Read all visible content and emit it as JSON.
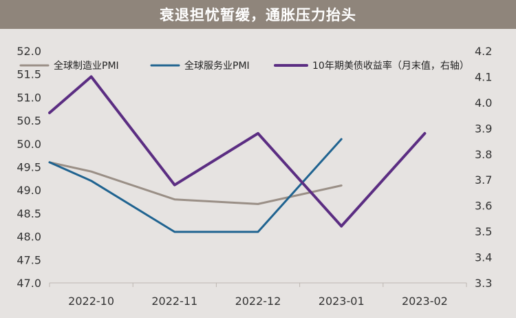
{
  "title": "衰退担忧暂缓，通胀压力抬头",
  "chart_data": {
    "type": "line",
    "categories": [
      "2022-10",
      "2022-11",
      "2022-12",
      "2023-01",
      "2023-02"
    ],
    "series": [
      {
        "name": "全球制造业PMI",
        "axis": "left",
        "color": "#9a8f86",
        "values": [
          49.4,
          48.8,
          48.7,
          49.1,
          null
        ],
        "start": 49.6
      },
      {
        "name": "全球服务业PMI",
        "axis": "left",
        "color": "#1f6390",
        "values": [
          49.2,
          48.1,
          48.1,
          50.1,
          null
        ],
        "start": 49.6
      },
      {
        "name": "10年期美债收益率（月末值，右轴）",
        "axis": "right",
        "color": "#5b2d82",
        "values": [
          4.1,
          3.68,
          3.88,
          3.52,
          3.88
        ],
        "start": 3.96
      }
    ],
    "y_left": {
      "min": 47.0,
      "max": 52.0,
      "ticks": [
        "47.0",
        "47.5",
        "48.0",
        "48.5",
        "49.0",
        "49.5",
        "50.0",
        "50.5",
        "51.0",
        "51.5",
        "52.0"
      ]
    },
    "y_right": {
      "min": 3.3,
      "max": 4.2,
      "ticks": [
        "3.3",
        "3.4",
        "3.5",
        "3.6",
        "3.7",
        "3.8",
        "3.9",
        "4.0",
        "4.1",
        "4.2"
      ]
    },
    "legend_position": "top",
    "grid": false
  }
}
